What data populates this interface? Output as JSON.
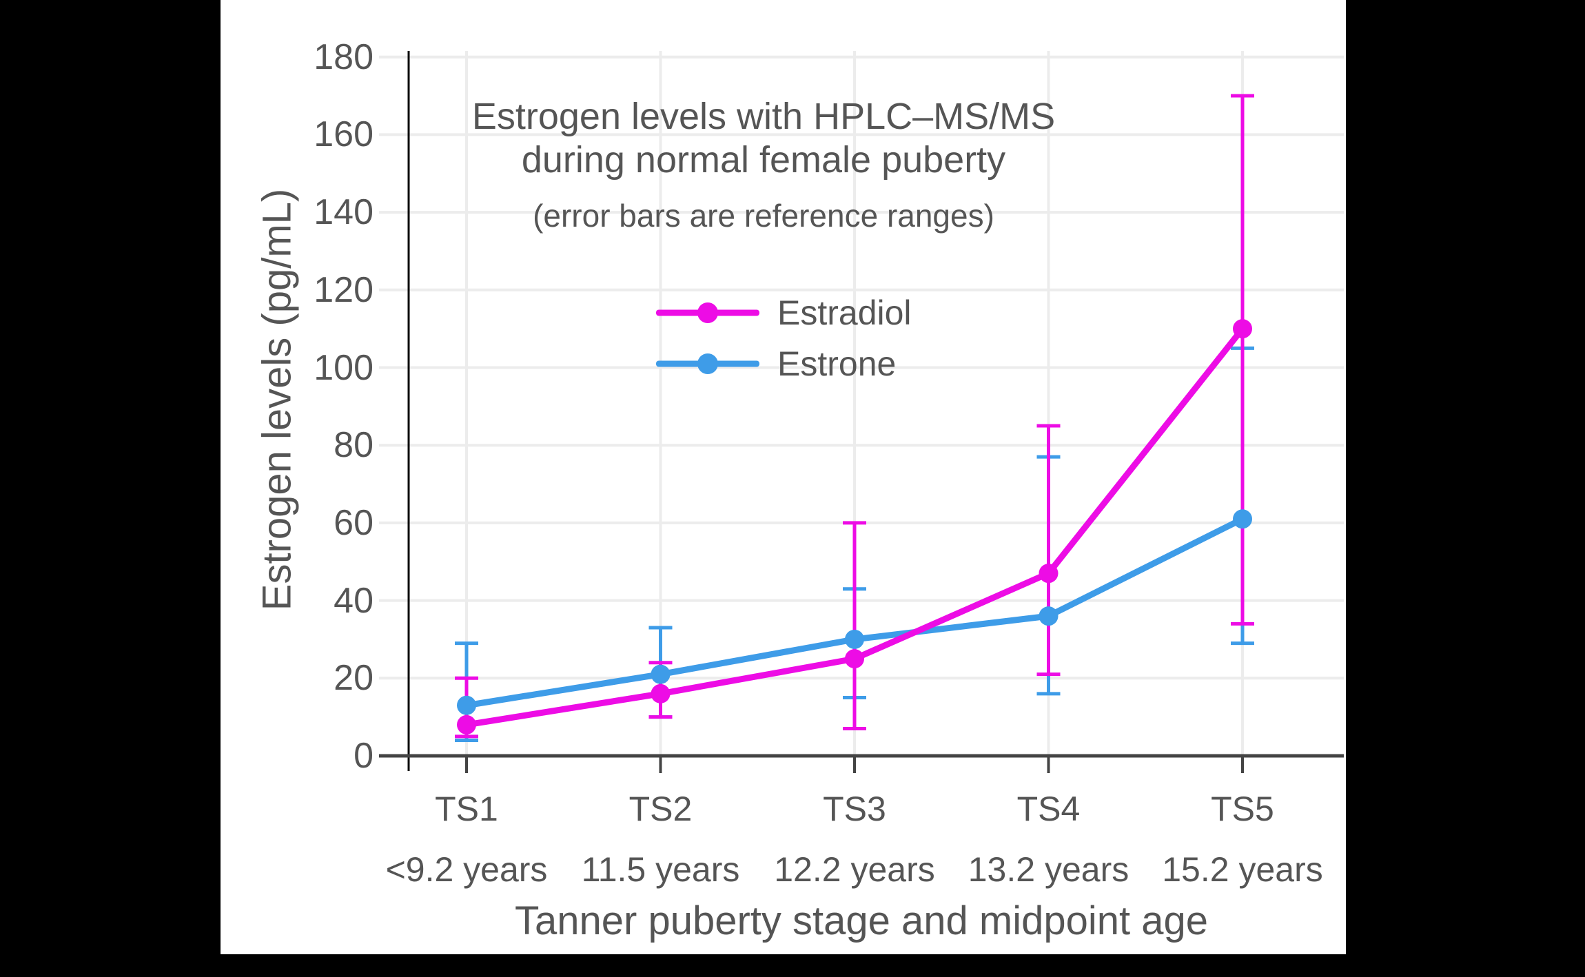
{
  "page": {
    "background": "#000000",
    "panel_background": "#ffffff"
  },
  "chart_data": {
    "type": "line",
    "title_lines": [
      "Estrogen levels with HPLC–MS/MS",
      "during normal female puberty"
    ],
    "subtitle": "(error bars are reference ranges)",
    "ylabel": "Estrogen levels (pg/mL)",
    "xlabel": "Tanner puberty stage and midpoint age",
    "categories": [
      "TS1",
      "TS2",
      "TS3",
      "TS4",
      "TS5"
    ],
    "category_ages": [
      "<9.2 years",
      "11.5 years",
      "12.2 years",
      "13.2 years",
      "15.2 years"
    ],
    "yticks": [
      0,
      20,
      40,
      60,
      80,
      100,
      120,
      140,
      160,
      180
    ],
    "ylim": [
      0,
      187
    ],
    "grid": true,
    "legend_position": "inside-upper-left",
    "series": [
      {
        "name": "Estradiol",
        "color": "#ED0CE5",
        "values": [
          8,
          16,
          25,
          47,
          110
        ],
        "err_low": [
          5,
          10,
          7,
          21,
          34
        ],
        "err_high": [
          20,
          24,
          60,
          85,
          170
        ]
      },
      {
        "name": "Estrone",
        "color": "#3E9CE8",
        "values": [
          13,
          21,
          30,
          36,
          61
        ],
        "err_low": [
          4,
          10,
          15,
          16,
          29
        ],
        "err_high": [
          29,
          33,
          43,
          77,
          105
        ]
      }
    ],
    "colors": {
      "grid": "#ECECEC",
      "axis": "#444444",
      "zero_axis": "#0A0A0A",
      "text": "#555555"
    }
  }
}
